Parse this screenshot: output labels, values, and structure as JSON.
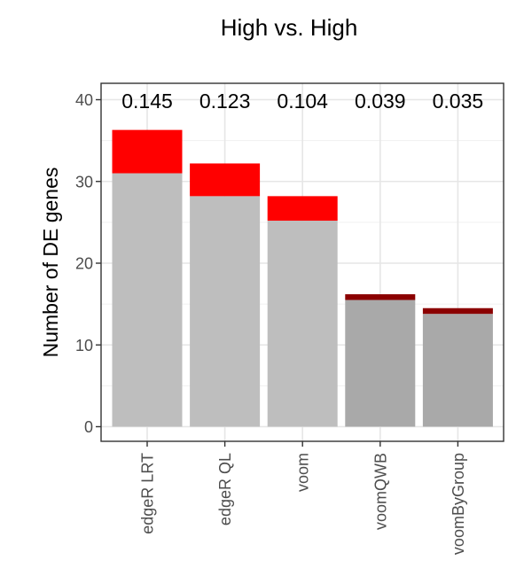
{
  "chart_data": {
    "type": "bar",
    "stacked": true,
    "title": "High vs. High",
    "xlabel": "",
    "ylabel": "Number of DE genes",
    "ylim": [
      0,
      40
    ],
    "yticks": [
      "0",
      "10",
      "20",
      "30",
      "40"
    ],
    "grid": true,
    "categories": [
      "edgeR LRT",
      "edgeR QL",
      "voom",
      "voomQWB",
      "voomByGroup"
    ],
    "series": [
      {
        "values": [
          31,
          28.2,
          25.2,
          15.5,
          13.8
        ],
        "colors": [
          "#bebebe",
          "#bebebe",
          "#bebebe",
          "#a9a9a9",
          "#a9a9a9"
        ]
      },
      {
        "values": [
          5.3,
          4,
          3,
          0.7,
          0.7
        ],
        "colors": [
          "#ff0000",
          "#ff0000",
          "#ff0000",
          "#8b0000",
          "#8b0000"
        ]
      }
    ],
    "bar_labels": [
      "0.145",
      "0.123",
      "0.104",
      "0.039",
      "0.035"
    ]
  }
}
